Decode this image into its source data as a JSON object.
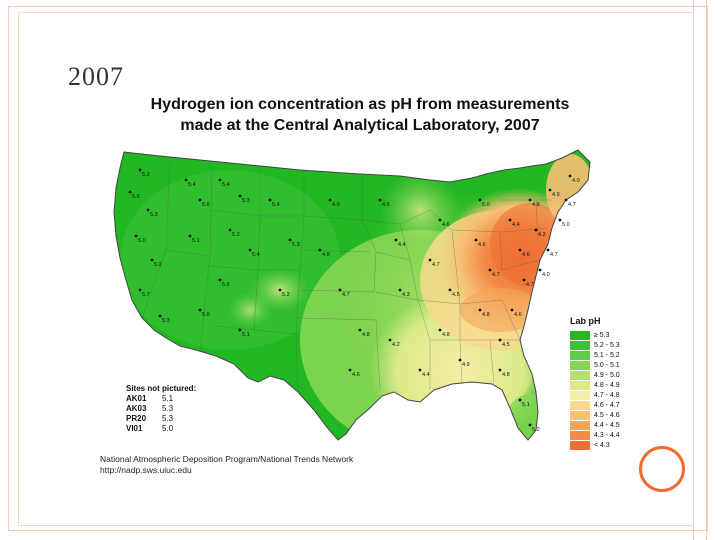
{
  "slide": {
    "title": "2007"
  },
  "map": {
    "title_line1": "Hydrogen ion concentration as pH from measurements",
    "title_line2": "made at the Central Analytical Laboratory, 2007",
    "legend_title": "Lab pH",
    "legend": [
      {
        "label": "≥ 5.3",
        "color": "#22b822"
      },
      {
        "label": "5.2 - 5.3",
        "color": "#3cc23a"
      },
      {
        "label": "5.1 - 5.2",
        "color": "#5fcc45"
      },
      {
        "label": "5.0 - 5.1",
        "color": "#86d654"
      },
      {
        "label": "4.9 - 5.0",
        "color": "#b3e06a"
      },
      {
        "label": "4.8 - 4.9",
        "color": "#dcea8a"
      },
      {
        "label": "4.7 - 4.8",
        "color": "#f5eea8"
      },
      {
        "label": "4.6 - 4.7",
        "color": "#f8d98e"
      },
      {
        "label": "4.5 - 4.6",
        "color": "#f7c074"
      },
      {
        "label": "4.4 - 4.5",
        "color": "#f5a55a"
      },
      {
        "label": "4.3 - 4.4",
        "color": "#f28a45"
      },
      {
        "label": "< 4.3",
        "color": "#ee6e33"
      }
    ],
    "sites_title": "Sites not pictured:",
    "sites": [
      {
        "code": "AK01",
        "value": "5.1"
      },
      {
        "code": "AK03",
        "value": "5.3"
      },
      {
        "code": "PR20",
        "value": "5.3"
      },
      {
        "code": "VI01",
        "value": "5.0"
      }
    ],
    "credit_line1": "National Atmospheric Deposition Program/National Trends Network",
    "credit_line2": "http://nadp.sws.uiuc.edu",
    "station_labels": [
      "5.2",
      "5.5",
      "5.3",
      "5.0",
      "5.2",
      "5.7",
      "5.3",
      "5.4",
      "5.6",
      "5.1",
      "5.4",
      "5.3",
      "5.2",
      "5.4",
      "5.6",
      "5.0",
      "5.1",
      "5.4",
      "5.3",
      "5.2",
      "4.9",
      "4.8",
      "4.7",
      "4.8",
      "4.6",
      "4.5",
      "4.4",
      "4.3",
      "4.2",
      "4.4",
      "4.6",
      "4.7",
      "4.5",
      "4.8",
      "4.9",
      "5.0",
      "4.6",
      "4.7",
      "4.8",
      "4.5",
      "4.4",
      "4.6",
      "4.7",
      "4.6",
      "4.8",
      "4.9",
      "5.0",
      "4.7",
      "4.0",
      "4.7",
      "4.2",
      "4.0",
      "4.8",
      "5.1",
      "5.2"
    ]
  }
}
